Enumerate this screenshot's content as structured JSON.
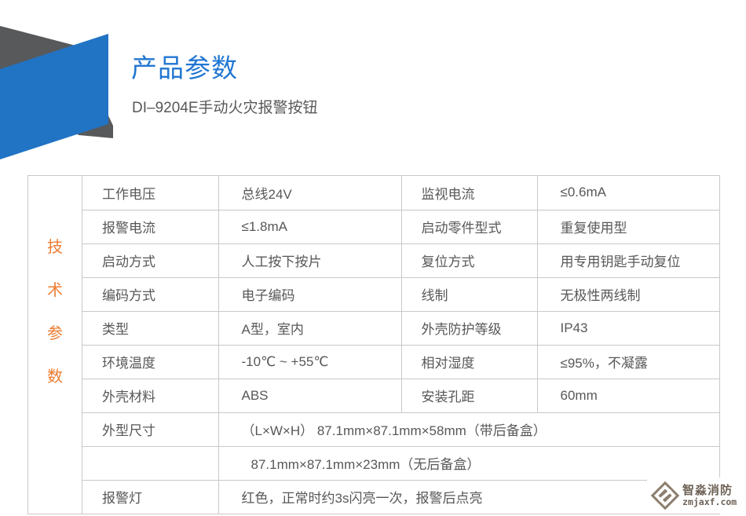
{
  "header": {
    "title": "产品参数",
    "subtitle": "DI–9204E手动火灾报警按钮"
  },
  "side_label": {
    "text": "技术参数",
    "chars": [
      "技",
      "术",
      "参",
      "数"
    ]
  },
  "table": {
    "rows": [
      {
        "cells": [
          {
            "t": "工作电压",
            "k": "label"
          },
          {
            "t": "总线24V",
            "k": "value"
          },
          {
            "t": "监视电流",
            "k": "label"
          },
          {
            "t": "≤0.6mA",
            "k": "value"
          }
        ]
      },
      {
        "cells": [
          {
            "t": "报警电流",
            "k": "label"
          },
          {
            "t": "≤1.8mA",
            "k": "value"
          },
          {
            "t": "启动零件型式",
            "k": "label"
          },
          {
            "t": "重复使用型",
            "k": "value"
          }
        ]
      },
      {
        "cells": [
          {
            "t": "启动方式",
            "k": "label"
          },
          {
            "t": "人工按下按片",
            "k": "value"
          },
          {
            "t": "复位方式",
            "k": "label"
          },
          {
            "t": "用专用钥匙手动复位",
            "k": "value"
          }
        ]
      },
      {
        "cells": [
          {
            "t": "编码方式",
            "k": "label"
          },
          {
            "t": "电子编码",
            "k": "value"
          },
          {
            "t": "线制",
            "k": "label"
          },
          {
            "t": "无极性两线制",
            "k": "value"
          }
        ]
      },
      {
        "cells": [
          {
            "t": "类型",
            "k": "label"
          },
          {
            "t": "A型，室内",
            "k": "value"
          },
          {
            "t": "外壳防护等级",
            "k": "label"
          },
          {
            "t": "IP43",
            "k": "value"
          }
        ]
      },
      {
        "cells": [
          {
            "t": "环境温度",
            "k": "label"
          },
          {
            "t": "-10℃ ~ +55℃",
            "k": "value"
          },
          {
            "t": "相对湿度",
            "k": "label"
          },
          {
            "t": "≤95%，不凝露",
            "k": "value"
          }
        ]
      },
      {
        "cells": [
          {
            "t": "外壳材料",
            "k": "label"
          },
          {
            "t": "ABS",
            "k": "value"
          },
          {
            "t": "安装孔距",
            "k": "label"
          },
          {
            "t": "60mm",
            "k": "value"
          }
        ]
      },
      {
        "cells": [
          {
            "t": "外型尺寸",
            "k": "label"
          },
          {
            "t": "（L×W×H） 87.1mm×87.1mm×58mm（带后备盒）",
            "k": "value",
            "span": 3
          }
        ]
      },
      {
        "cells": [
          {
            "t": "",
            "k": "label"
          },
          {
            "t": "87.1mm×87.1mm×23mm（无后备盒）",
            "k": "value",
            "span": 3,
            "indent": true
          }
        ]
      },
      {
        "cells": [
          {
            "t": "报警灯",
            "k": "label"
          },
          {
            "t": "红色，正常时约3s闪亮一次，报警后点亮",
            "k": "value",
            "span": 3
          }
        ]
      }
    ]
  },
  "watermark": {
    "name": "智淼消防",
    "site": "zmjaxf.com"
  },
  "colors": {
    "title_blue": "#2176d2",
    "ribbon_blue": "#2173c4",
    "ribbon_gray": "#58595b",
    "side_label_orange": "#ee7c31",
    "table_border": "#c9c9c9",
    "text_gray": "#595757",
    "watermark_brown": "#6e6257"
  }
}
